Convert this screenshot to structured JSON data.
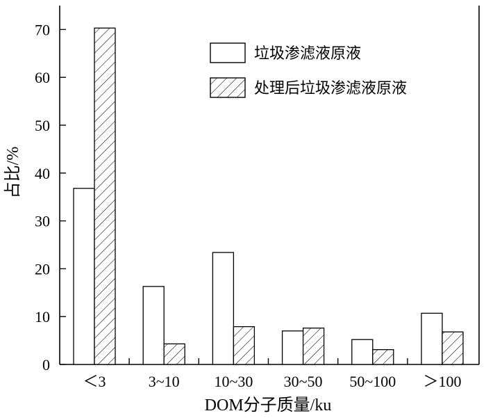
{
  "chart_data": {
    "type": "bar",
    "categories": [
      "＜3",
      "3~10",
      "10~30",
      "30~50",
      "50~100",
      "＞100"
    ],
    "series": [
      {
        "name": "垃圾渗滤液原液",
        "values": [
          36.8,
          16.3,
          23.4,
          7.0,
          5.2,
          10.7
        ],
        "fill": "none",
        "color": "#000000"
      },
      {
        "name": "处理后垃圾渗滤液原液",
        "values": [
          70.3,
          4.3,
          7.9,
          7.6,
          3.1,
          6.8
        ],
        "fill": "hatch",
        "color": "#000000"
      }
    ],
    "yticks": [
      0,
      10,
      20,
      30,
      40,
      50,
      60,
      70
    ],
    "ylim": [
      0,
      75
    ],
    "xlabel": "DOM分子质量/ku",
    "ylabel": "占比/%",
    "legend_position": "top-right",
    "grid": false
  }
}
